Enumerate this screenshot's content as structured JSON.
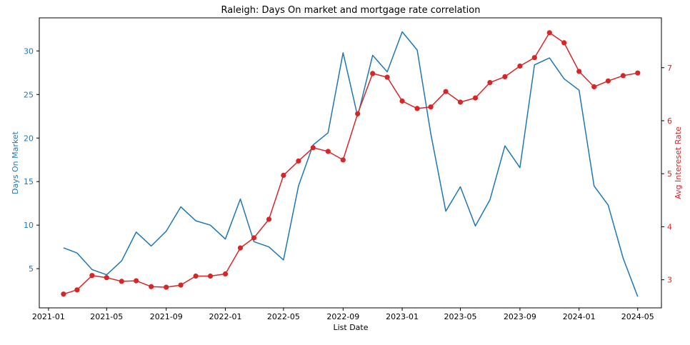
{
  "chart_data": {
    "type": "line",
    "title": "Raleigh: Days On market and mortgage rate correlation",
    "xlabel": "List Date",
    "ylabel": "Days On Market",
    "ylabel_right": "Avg Intereset Rate",
    "x_ticks": [
      "2021-01",
      "2021-05",
      "2021-09",
      "2022-01",
      "2022-05",
      "2022-09",
      "2023-01",
      "2023-05",
      "2023-09",
      "2024-01",
      "2024-05"
    ],
    "y_ticks_left": [
      "5",
      "10",
      "15",
      "20",
      "25",
      "30"
    ],
    "y_ticks_right": [
      "3",
      "4",
      "5",
      "6",
      "7"
    ],
    "ylim": [
      0.5,
      33.8
    ],
    "ylim_right": [
      2.47,
      7.94
    ],
    "xlim": [
      "2020-12-13",
      "2024-06-19"
    ],
    "grid": false,
    "x": [
      "2021-02-01",
      "2021-03-01",
      "2021-04-01",
      "2021-05-01",
      "2021-06-01",
      "2021-07-01",
      "2021-08-01",
      "2021-09-01",
      "2021-10-01",
      "2021-11-01",
      "2021-12-01",
      "2022-01-01",
      "2022-02-01",
      "2022-03-01",
      "2022-04-01",
      "2022-05-01",
      "2022-06-01",
      "2022-07-01",
      "2022-08-01",
      "2022-09-01",
      "2022-10-01",
      "2022-11-01",
      "2022-12-01",
      "2023-01-01",
      "2023-02-01",
      "2023-03-01",
      "2023-04-01",
      "2023-05-01",
      "2023-06-01",
      "2023-07-01",
      "2023-08-01",
      "2023-09-01",
      "2023-10-01",
      "2023-11-01",
      "2023-12-01",
      "2024-01-01",
      "2024-02-01",
      "2024-03-01",
      "2024-04-01",
      "2024-05-01"
    ],
    "series": [
      {
        "name": "Days On Market",
        "axis": "left",
        "color": "#1f77b4",
        "marker": false,
        "values": [
          7.4,
          6.8,
          4.9,
          4.3,
          5.9,
          9.2,
          7.6,
          9.3,
          12.1,
          10.5,
          10.0,
          8.4,
          13.0,
          8.1,
          7.5,
          6.0,
          14.5,
          19.2,
          20.6,
          29.8,
          22.5,
          29.5,
          27.6,
          32.2,
          30.1,
          20.5,
          11.6,
          14.4,
          9.9,
          12.9,
          19.1,
          16.6,
          28.4,
          29.2,
          26.8,
          25.5,
          14.5,
          12.3,
          6.2,
          1.8
        ]
      },
      {
        "name": "Avg Intereset Rate",
        "axis": "right",
        "color": "#d62728",
        "marker": true,
        "values": [
          2.73,
          2.81,
          3.08,
          3.04,
          2.97,
          2.98,
          2.87,
          2.86,
          2.9,
          3.07,
          3.07,
          3.11,
          3.6,
          3.79,
          4.14,
          4.97,
          5.24,
          5.49,
          5.42,
          5.26,
          6.13,
          6.89,
          6.82,
          6.37,
          6.23,
          6.26,
          6.55,
          6.35,
          6.43,
          6.72,
          6.83,
          7.03,
          7.19,
          7.66,
          7.47,
          6.93,
          6.64,
          6.75,
          6.85,
          6.9
        ]
      }
    ]
  }
}
